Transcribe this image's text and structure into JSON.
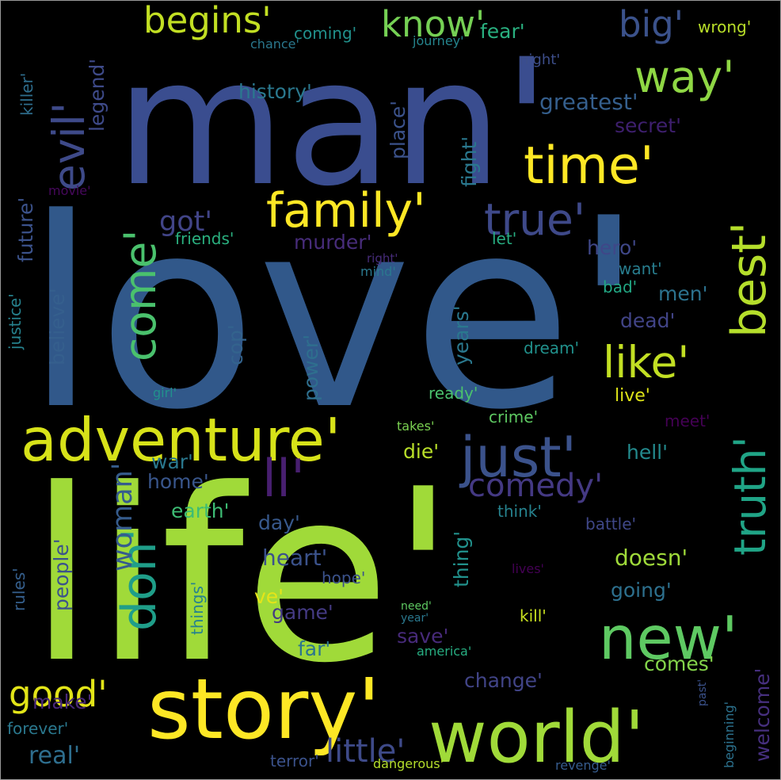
{
  "palette": {
    "background": "#000000",
    "frame": "#9a9a9a",
    "viridis": [
      "#440154",
      "#46327e",
      "#365c8d",
      "#277f8e",
      "#1fa187",
      "#4ac16d",
      "#a0da39",
      "#fde725"
    ]
  },
  "words": [
    {
      "text": "love'",
      "weight": 1.0,
      "color": "#31588a",
      "orientation": "horizontal"
    },
    {
      "text": "life'",
      "weight": 0.98,
      "color": "#a0da39",
      "orientation": "horizontal"
    },
    {
      "text": "man'",
      "weight": 0.85,
      "color": "#3a4d8f",
      "orientation": "horizontal"
    },
    {
      "text": "story'",
      "weight": 0.55,
      "color": "#fde725",
      "orientation": "horizontal"
    },
    {
      "text": "world'",
      "weight": 0.54,
      "color": "#a0da39",
      "orientation": "horizontal"
    },
    {
      "text": "new'",
      "weight": 0.5,
      "color": "#5ec962",
      "orientation": "horizontal"
    },
    {
      "text": "adventure'",
      "weight": 0.45,
      "color": "#d7e219",
      "orientation": "horizontal"
    },
    {
      "text": "time'",
      "weight": 0.44,
      "color": "#fde725",
      "orientation": "horizontal"
    },
    {
      "text": "just'",
      "weight": 0.44,
      "color": "#3b528b",
      "orientation": "horizontal"
    },
    {
      "text": "family'",
      "weight": 0.38,
      "color": "#fde725",
      "orientation": "horizontal"
    },
    {
      "text": "like'",
      "weight": 0.35,
      "color": "#c2df23",
      "orientation": "horizontal"
    },
    {
      "text": "true'",
      "weight": 0.33,
      "color": "#3e4989",
      "orientation": "horizontal"
    },
    {
      "text": "way'",
      "weight": 0.32,
      "color": "#8fd744",
      "orientation": "horizontal"
    },
    {
      "text": "best'",
      "weight": 0.33,
      "color": "#b5de2b",
      "orientation": "vertical"
    },
    {
      "text": "truth'",
      "weight": 0.3,
      "color": "#20a486",
      "orientation": "vertical"
    },
    {
      "text": "evil'",
      "weight": 0.32,
      "color": "#3e4a89",
      "orientation": "vertical"
    },
    {
      "text": "come'",
      "weight": 0.33,
      "color": "#4ac16d",
      "orientation": "vertical"
    },
    {
      "text": "don'",
      "weight": 0.34,
      "color": "#1f9e89",
      "orientation": "vertical"
    },
    {
      "text": "know'",
      "weight": 0.26,
      "color": "#75d054",
      "orientation": "horizontal"
    },
    {
      "text": "begins'",
      "weight": 0.24,
      "color": "#c2df23",
      "orientation": "horizontal"
    },
    {
      "text": "big'",
      "weight": 0.25,
      "color": "#3b528b",
      "orientation": "horizontal"
    },
    {
      "text": "good'",
      "weight": 0.26,
      "color": "#e2e418",
      "orientation": "horizontal"
    },
    {
      "text": "ll'",
      "weight": 0.3,
      "color": "#481f70",
      "orientation": "horizontal"
    },
    {
      "text": "comedy'",
      "weight": 0.22,
      "color": "#443983",
      "orientation": "horizontal"
    },
    {
      "text": "little'",
      "weight": 0.22,
      "color": "#3e4a89",
      "orientation": "horizontal"
    },
    {
      "text": "woman'",
      "weight": 0.2,
      "color": "#365c8d",
      "orientation": "vertical"
    },
    {
      "text": "got'",
      "weight": 0.2,
      "color": "#414487",
      "orientation": "horizontal"
    },
    {
      "text": "greatest'",
      "weight": 0.16,
      "color": "#355f8d",
      "orientation": "horizontal"
    },
    {
      "text": "history'",
      "weight": 0.13,
      "color": "#2a788e",
      "orientation": "horizontal"
    },
    {
      "text": "coming'",
      "weight": 0.12,
      "color": "#21918c",
      "orientation": "horizontal"
    },
    {
      "text": "fear'",
      "weight": 0.13,
      "color": "#29af7f",
      "orientation": "horizontal"
    },
    {
      "text": "wrong'",
      "weight": 0.12,
      "color": "#b8de29",
      "orientation": "horizontal"
    },
    {
      "text": "chance'",
      "weight": 0.09,
      "color": "#2a788e",
      "orientation": "horizontal"
    },
    {
      "text": "journey'",
      "weight": 0.09,
      "color": "#25858e",
      "orientation": "horizontal"
    },
    {
      "text": "night'",
      "weight": 0.1,
      "color": "#3d4e8a",
      "orientation": "horizontal"
    },
    {
      "text": "secret'",
      "weight": 0.14,
      "color": "#3e1f6e",
      "orientation": "horizontal"
    },
    {
      "text": "place'",
      "weight": 0.14,
      "color": "#3b528b",
      "orientation": "vertical"
    },
    {
      "text": "fight'",
      "weight": 0.15,
      "color": "#2a788e",
      "orientation": "vertical"
    },
    {
      "text": "legend'",
      "weight": 0.13,
      "color": "#3e4a89",
      "orientation": "vertical"
    },
    {
      "text": "killer'",
      "weight": 0.12,
      "color": "#2e6e8e",
      "orientation": "vertical"
    },
    {
      "text": "future'",
      "weight": 0.14,
      "color": "#3b528b",
      "orientation": "vertical"
    },
    {
      "text": "justice'",
      "weight": 0.11,
      "color": "#26828e",
      "orientation": "vertical"
    },
    {
      "text": "believe'",
      "weight": 0.14,
      "color": "#355f8d",
      "orientation": "vertical"
    },
    {
      "text": "movie'",
      "weight": 0.08,
      "color": "#46085c",
      "orientation": "horizontal"
    },
    {
      "text": "friends'",
      "weight": 0.12,
      "color": "#2ab07f",
      "orientation": "horizontal"
    },
    {
      "text": "murder'",
      "weight": 0.14,
      "color": "#472c7a",
      "orientation": "horizontal"
    },
    {
      "text": "let'",
      "weight": 0.1,
      "color": "#27ad81",
      "orientation": "horizontal"
    },
    {
      "text": "right'",
      "weight": 0.08,
      "color": "#472c7a",
      "orientation": "horizontal"
    },
    {
      "text": "mind'",
      "weight": 0.08,
      "color": "#2a788e",
      "orientation": "horizontal"
    },
    {
      "text": "hero'",
      "weight": 0.14,
      "color": "#3f4788",
      "orientation": "horizontal"
    },
    {
      "text": "want'",
      "weight": 0.1,
      "color": "#287d8e",
      "orientation": "horizontal"
    },
    {
      "text": "bad'",
      "weight": 0.11,
      "color": "#22a884",
      "orientation": "horizontal"
    },
    {
      "text": "men'",
      "weight": 0.14,
      "color": "#2c728e",
      "orientation": "horizontal"
    },
    {
      "text": "dead'",
      "weight": 0.14,
      "color": "#414487",
      "orientation": "horizontal"
    },
    {
      "text": "cop'",
      "weight": 0.13,
      "color": "#33638d",
      "orientation": "vertical"
    },
    {
      "text": "power'",
      "weight": 0.15,
      "color": "#2e6f8e",
      "orientation": "vertical"
    },
    {
      "text": "years'",
      "weight": 0.15,
      "color": "#2a788e",
      "orientation": "vertical"
    },
    {
      "text": "dream'",
      "weight": 0.11,
      "color": "#21918c",
      "orientation": "horizontal"
    },
    {
      "text": "girl'",
      "weight": 0.07,
      "color": "#21918c",
      "orientation": "horizontal"
    },
    {
      "text": "ready'",
      "weight": 0.11,
      "color": "#4ac16d",
      "orientation": "horizontal"
    },
    {
      "text": "live'",
      "weight": 0.13,
      "color": "#dde318",
      "orientation": "horizontal"
    },
    {
      "text": "crime'",
      "weight": 0.12,
      "color": "#5ec962",
      "orientation": "horizontal"
    },
    {
      "text": "takes'",
      "weight": 0.08,
      "color": "#7ad151",
      "orientation": "horizontal"
    },
    {
      "text": "meet'",
      "weight": 0.13,
      "color": "#440154",
      "orientation": "horizontal"
    },
    {
      "text": "die'",
      "weight": 0.15,
      "color": "#b8de29",
      "orientation": "horizontal"
    },
    {
      "text": "war'",
      "weight": 0.13,
      "color": "#2a788e",
      "orientation": "horizontal"
    },
    {
      "text": "hell'",
      "weight": 0.15,
      "color": "#238a8d",
      "orientation": "horizontal"
    },
    {
      "text": "home'",
      "weight": 0.14,
      "color": "#39568c",
      "orientation": "horizontal"
    },
    {
      "text": "earth'",
      "weight": 0.14,
      "color": "#3dbc74",
      "orientation": "horizontal"
    },
    {
      "text": "day'",
      "weight": 0.13,
      "color": "#38598c",
      "orientation": "horizontal"
    },
    {
      "text": "think'",
      "weight": 0.12,
      "color": "#26828e",
      "orientation": "horizontal"
    },
    {
      "text": "battle'",
      "weight": 0.12,
      "color": "#3f4788",
      "orientation": "horizontal"
    },
    {
      "text": "thing'",
      "weight": 0.15,
      "color": "#21918c",
      "orientation": "vertical"
    },
    {
      "text": "heart'",
      "weight": 0.15,
      "color": "#3b528b",
      "orientation": "horizontal"
    },
    {
      "text": "doesn'",
      "weight": 0.15,
      "color": "#9fda3a",
      "orientation": "horizontal"
    },
    {
      "text": "hope'",
      "weight": 0.11,
      "color": "#3b528b",
      "orientation": "horizontal"
    },
    {
      "text": "lives'",
      "weight": 0.08,
      "color": "#440154",
      "orientation": "horizontal"
    },
    {
      "text": "ve'",
      "weight": 0.14,
      "color": "#e5e419",
      "orientation": "horizontal"
    },
    {
      "text": "game'",
      "weight": 0.14,
      "color": "#443a83",
      "orientation": "horizontal"
    },
    {
      "text": "going'",
      "weight": 0.15,
      "color": "#2d708e",
      "orientation": "horizontal"
    },
    {
      "text": "need'",
      "weight": 0.07,
      "color": "#5ec962",
      "orientation": "horizontal"
    },
    {
      "text": "year'",
      "weight": 0.07,
      "color": "#2a788e",
      "orientation": "horizontal"
    },
    {
      "text": "kill'",
      "weight": 0.12,
      "color": "#c8e020",
      "orientation": "horizontal"
    },
    {
      "text": "save'",
      "weight": 0.14,
      "color": "#472a7a",
      "orientation": "horizontal"
    },
    {
      "text": "far'",
      "weight": 0.14,
      "color": "#2b758e",
      "orientation": "horizontal"
    },
    {
      "text": "america'",
      "weight": 0.08,
      "color": "#27ad81",
      "orientation": "horizontal"
    },
    {
      "text": "comes'",
      "weight": 0.14,
      "color": "#84d44b",
      "orientation": "horizontal"
    },
    {
      "text": "change'",
      "weight": 0.14,
      "color": "#414487",
      "orientation": "horizontal"
    },
    {
      "text": "welcome'",
      "weight": 0.15,
      "color": "#462f7e",
      "orientation": "vertical"
    },
    {
      "text": "people'",
      "weight": 0.14,
      "color": "#3b528b",
      "orientation": "vertical"
    },
    {
      "text": "rules'",
      "weight": 0.12,
      "color": "#355f8d",
      "orientation": "vertical"
    },
    {
      "text": "things'",
      "weight": 0.11,
      "color": "#26828e",
      "orientation": "vertical"
    },
    {
      "text": "make'",
      "weight": 0.14,
      "color": "#482878",
      "orientation": "horizontal"
    },
    {
      "text": "forever'",
      "weight": 0.13,
      "color": "#2a788e",
      "orientation": "horizontal"
    },
    {
      "text": "real'",
      "weight": 0.15,
      "color": "#2e6e8e",
      "orientation": "horizontal"
    },
    {
      "text": "terror'",
      "weight": 0.11,
      "color": "#3b528b",
      "orientation": "horizontal"
    },
    {
      "text": "dangerous'",
      "weight": 0.09,
      "color": "#b5de2b",
      "orientation": "horizontal"
    },
    {
      "text": "revenge'",
      "weight": 0.09,
      "color": "#365c8d",
      "orientation": "horizontal"
    },
    {
      "text": "past'",
      "weight": 0.07,
      "color": "#3b528b",
      "orientation": "vertical"
    },
    {
      "text": "beginning'",
      "weight": 0.08,
      "color": "#2c728e",
      "orientation": "vertical"
    }
  ]
}
